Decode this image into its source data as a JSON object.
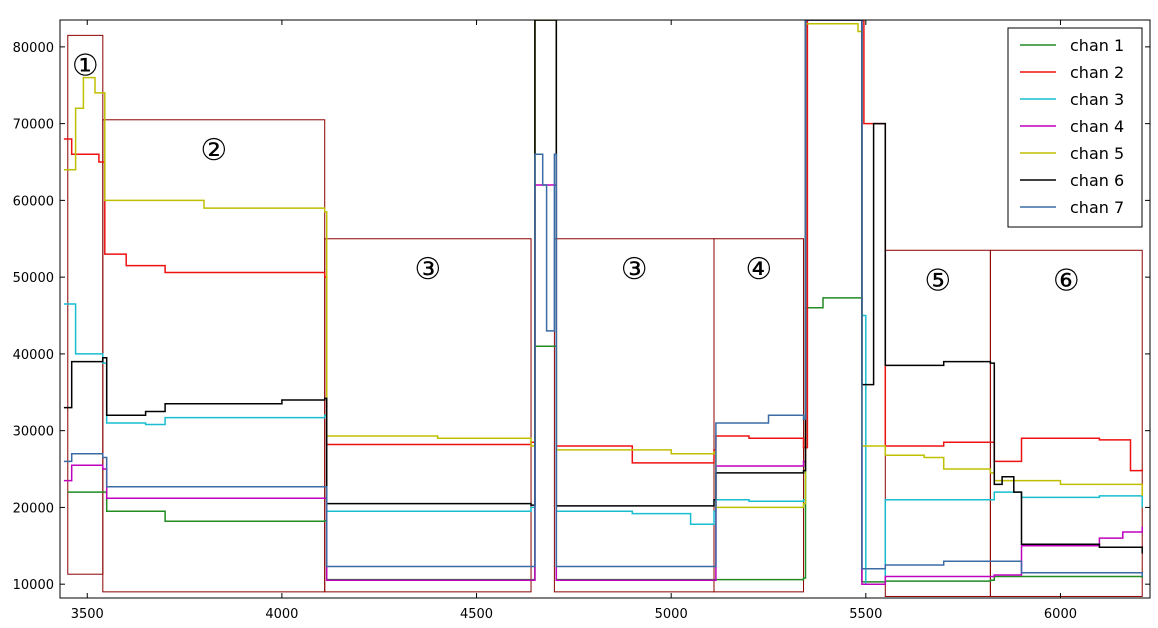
{
  "chart_data": {
    "type": "line",
    "title": "",
    "xlabel": "",
    "ylabel": "",
    "xlim": [
      3430,
      6230
    ],
    "ylim": [
      8200,
      83500
    ],
    "x_ticks": [
      3500,
      4000,
      4500,
      5000,
      5500,
      6000
    ],
    "y_ticks": [
      10000,
      20000,
      30000,
      40000,
      50000,
      60000,
      70000,
      80000
    ],
    "legend_position": "top-right",
    "grid": false,
    "series": [
      {
        "name": "chan 1",
        "color": "#228B22",
        "points": [
          [
            3450,
            22000
          ],
          [
            3540,
            22000
          ],
          [
            3550,
            19500
          ],
          [
            3700,
            18200
          ],
          [
            4110,
            18300
          ],
          [
            4115,
            10600
          ],
          [
            4640,
            10600
          ],
          [
            4650,
            41000
          ],
          [
            4700,
            41000
          ],
          [
            4705,
            10600
          ],
          [
            5340,
            10800
          ],
          [
            5345,
            46000
          ],
          [
            5390,
            47300
          ],
          [
            5480,
            47300
          ],
          [
            5490,
            10300
          ],
          [
            5550,
            10400
          ],
          [
            5820,
            10500
          ],
          [
            5830,
            11000
          ],
          [
            6210,
            10800
          ]
        ]
      },
      {
        "name": "chan 2",
        "color": "#EE1111",
        "points": [
          [
            3440,
            68000
          ],
          [
            3460,
            66000
          ],
          [
            3530,
            65000
          ],
          [
            3545,
            53000
          ],
          [
            3600,
            51500
          ],
          [
            3700,
            50600
          ],
          [
            4110,
            50000
          ],
          [
            4115,
            28200
          ],
          [
            4640,
            28500
          ],
          [
            4650,
            83500
          ],
          [
            4700,
            83500
          ],
          [
            4705,
            28000
          ],
          [
            4900,
            25800
          ],
          [
            5110,
            27500
          ],
          [
            5115,
            29300
          ],
          [
            5200,
            29000
          ],
          [
            5340,
            27800
          ],
          [
            5350,
            83500
          ],
          [
            5480,
            83500
          ],
          [
            5495,
            70000
          ],
          [
            5550,
            28000
          ],
          [
            5700,
            28500
          ],
          [
            5820,
            28500
          ],
          [
            5830,
            26000
          ],
          [
            5900,
            29000
          ],
          [
            6100,
            28800
          ],
          [
            6180,
            24800
          ],
          [
            6210,
            25000
          ]
        ]
      },
      {
        "name": "chan 3",
        "color": "#17BECF",
        "points": [
          [
            3440,
            46500
          ],
          [
            3470,
            40000
          ],
          [
            3540,
            38800
          ],
          [
            3550,
            31000
          ],
          [
            3650,
            30800
          ],
          [
            3700,
            31700
          ],
          [
            4110,
            32000
          ],
          [
            4115,
            19500
          ],
          [
            4400,
            19500
          ],
          [
            4640,
            20000
          ],
          [
            4650,
            83500
          ],
          [
            4700,
            83500
          ],
          [
            4705,
            19500
          ],
          [
            4900,
            19200
          ],
          [
            5050,
            17800
          ],
          [
            5110,
            19500
          ],
          [
            5115,
            21000
          ],
          [
            5200,
            20800
          ],
          [
            5340,
            21000
          ],
          [
            5345,
            83500
          ],
          [
            5470,
            83500
          ],
          [
            5490,
            45000
          ],
          [
            5500,
            10000
          ],
          [
            5550,
            21000
          ],
          [
            5820,
            21000
          ],
          [
            5830,
            22000
          ],
          [
            5900,
            21300
          ],
          [
            6100,
            21500
          ],
          [
            6210,
            20000
          ]
        ]
      },
      {
        "name": "chan 4",
        "color": "#BF00BF",
        "points": [
          [
            3440,
            23500
          ],
          [
            3460,
            25500
          ],
          [
            3540,
            25000
          ],
          [
            3550,
            21200
          ],
          [
            4110,
            21200
          ],
          [
            4115,
            10500
          ],
          [
            4640,
            10500
          ],
          [
            4650,
            62000
          ],
          [
            4700,
            62000
          ],
          [
            4705,
            10500
          ],
          [
            5110,
            10500
          ],
          [
            5115,
            25400
          ],
          [
            5340,
            26000
          ],
          [
            5345,
            83500
          ],
          [
            5480,
            83500
          ],
          [
            5490,
            10000
          ],
          [
            5550,
            11000
          ],
          [
            5820,
            11000
          ],
          [
            5830,
            11200
          ],
          [
            5900,
            15000
          ],
          [
            6100,
            16000
          ],
          [
            6160,
            16800
          ],
          [
            6210,
            17500
          ]
        ]
      },
      {
        "name": "chan 5",
        "color": "#BFBF00",
        "points": [
          [
            3440,
            64000
          ],
          [
            3470,
            72000
          ],
          [
            3490,
            76000
          ],
          [
            3520,
            74000
          ],
          [
            3545,
            60000
          ],
          [
            3700,
            60000
          ],
          [
            3800,
            59000
          ],
          [
            4110,
            58500
          ],
          [
            4115,
            29300
          ],
          [
            4400,
            29000
          ],
          [
            4640,
            28000
          ],
          [
            4650,
            83500
          ],
          [
            4700,
            83500
          ],
          [
            4705,
            27500
          ],
          [
            5000,
            27000
          ],
          [
            5110,
            27200
          ],
          [
            5115,
            20000
          ],
          [
            5340,
            20500
          ],
          [
            5345,
            83000
          ],
          [
            5480,
            82000
          ],
          [
            5490,
            28000
          ],
          [
            5550,
            26800
          ],
          [
            5650,
            26500
          ],
          [
            5700,
            25000
          ],
          [
            5820,
            24500
          ],
          [
            5830,
            23500
          ],
          [
            6000,
            23000
          ],
          [
            6100,
            23000
          ],
          [
            6210,
            21500
          ]
        ]
      },
      {
        "name": "chan 6",
        "color": "#000000",
        "points": [
          [
            3440,
            33000
          ],
          [
            3460,
            39000
          ],
          [
            3540,
            39500
          ],
          [
            3550,
            32000
          ],
          [
            3650,
            32500
          ],
          [
            3700,
            33500
          ],
          [
            4000,
            34000
          ],
          [
            4110,
            34200
          ],
          [
            4115,
            20500
          ],
          [
            4640,
            20300
          ],
          [
            4650,
            83500
          ],
          [
            4700,
            83500
          ],
          [
            4705,
            20200
          ],
          [
            5110,
            21000
          ],
          [
            5115,
            24500
          ],
          [
            5340,
            24800
          ],
          [
            5345,
            83500
          ],
          [
            5480,
            83500
          ],
          [
            5490,
            36000
          ],
          [
            5520,
            70000
          ],
          [
            5550,
            38500
          ],
          [
            5700,
            39000
          ],
          [
            5820,
            38800
          ],
          [
            5830,
            23000
          ],
          [
            5850,
            24000
          ],
          [
            5880,
            22000
          ],
          [
            5900,
            15200
          ],
          [
            6100,
            14800
          ],
          [
            6210,
            14000
          ]
        ]
      },
      {
        "name": "chan 7",
        "color": "#3B6BA5",
        "points": [
          [
            3440,
            26000
          ],
          [
            3460,
            27000
          ],
          [
            3540,
            26500
          ],
          [
            3550,
            22700
          ],
          [
            4110,
            22700
          ],
          [
            4115,
            12300
          ],
          [
            4640,
            12300
          ],
          [
            4650,
            66000
          ],
          [
            4670,
            62000
          ],
          [
            4680,
            43000
          ],
          [
            4700,
            66000
          ],
          [
            4705,
            12300
          ],
          [
            5110,
            12300
          ],
          [
            5115,
            31000
          ],
          [
            5250,
            32000
          ],
          [
            5340,
            31500
          ],
          [
            5345,
            83500
          ],
          [
            5480,
            83500
          ],
          [
            5490,
            12000
          ],
          [
            5550,
            12500
          ],
          [
            5700,
            13000
          ],
          [
            5820,
            13000
          ],
          [
            5830,
            13000
          ],
          [
            5900,
            11500
          ],
          [
            6100,
            11500
          ],
          [
            6210,
            11000
          ]
        ]
      }
    ],
    "regions": [
      {
        "label": "①",
        "x0": 3450,
        "x1": 3540,
        "y0": 11300,
        "y1": 81500
      },
      {
        "label": "②",
        "x0": 3540,
        "x1": 4110,
        "y0": 9000,
        "y1": 70500
      },
      {
        "label": "③",
        "x0": 4110,
        "x1": 4640,
        "y0": 9000,
        "y1": 55000
      },
      {
        "label": "③",
        "x0": 4700,
        "x1": 5110,
        "y0": 9000,
        "y1": 55000
      },
      {
        "label": "④",
        "x0": 5110,
        "x1": 5340,
        "y0": 9000,
        "y1": 55000
      },
      {
        "label": "⑤",
        "x0": 5550,
        "x1": 5820,
        "y0": 8400,
        "y1": 53500
      },
      {
        "label": "⑥",
        "x0": 5820,
        "x1": 6210,
        "y0": 8400,
        "y1": 53500
      }
    ]
  }
}
